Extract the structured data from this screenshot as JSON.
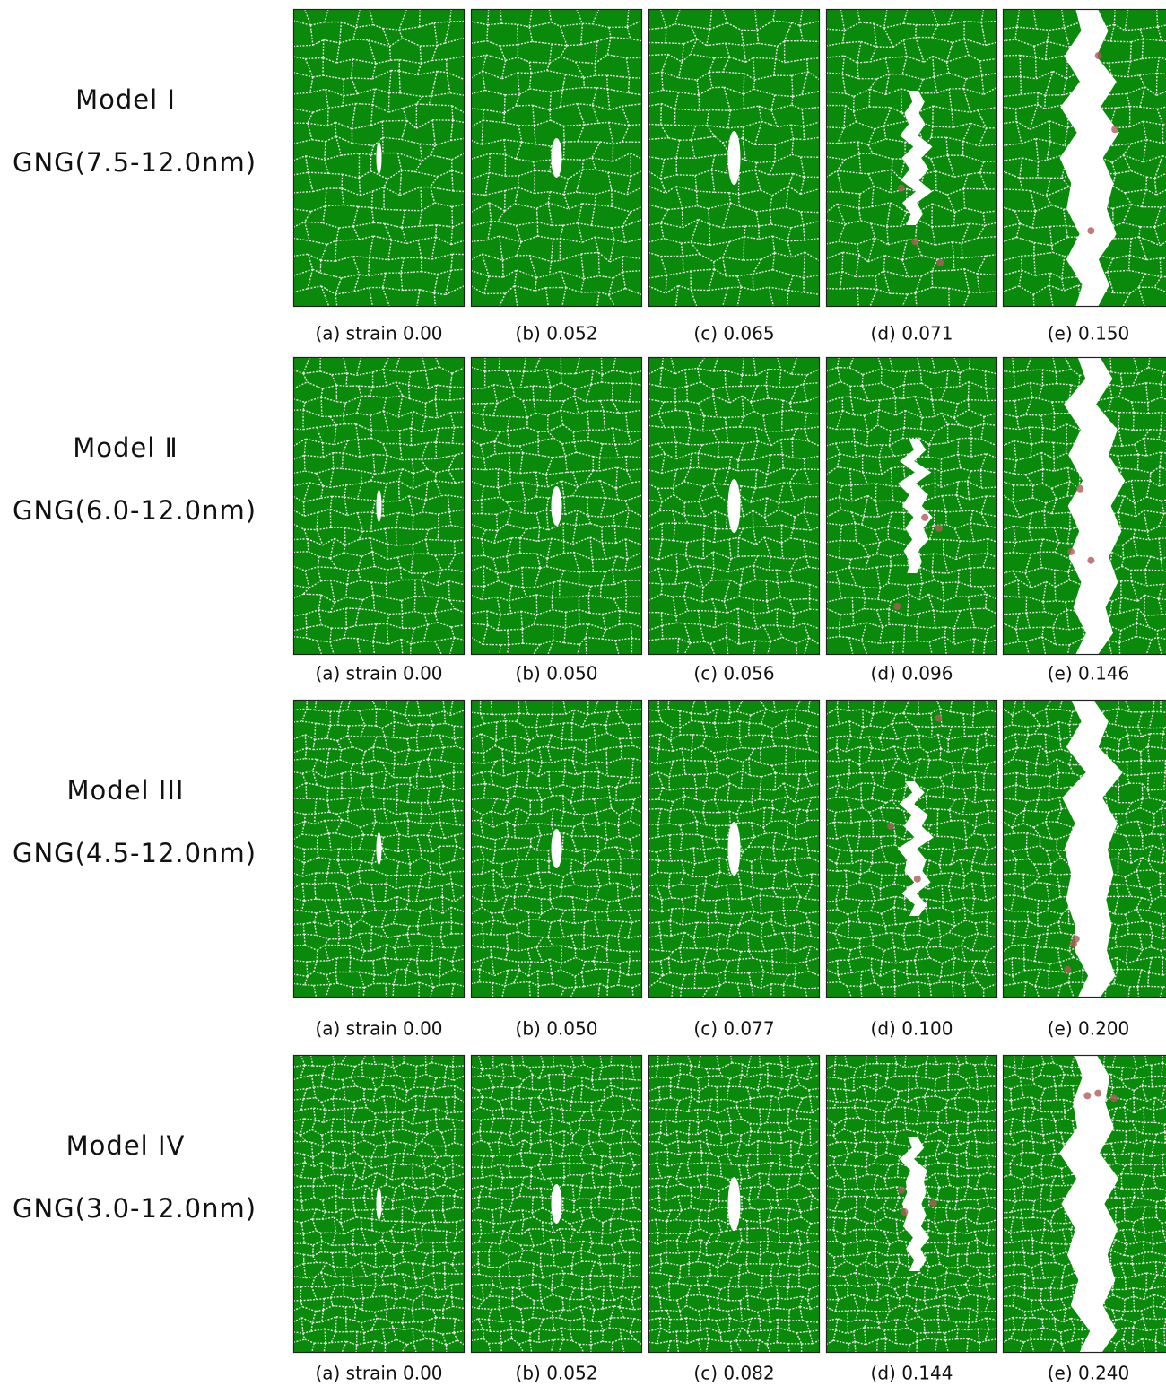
{
  "figure": {
    "rows": [
      {
        "model": "Model Ⅰ",
        "gng": "GNG(7.5-12.0nm)",
        "captions": [
          "(a)  strain 0.00",
          "(b) 0.052",
          "(c) 0.065",
          "(d) 0.071",
          "(e) 0.150"
        ]
      },
      {
        "model": "Model Ⅱ",
        "gng": "GNG(6.0-12.0nm)",
        "captions": [
          "(a)  strain 0.00",
          "(b) 0.050",
          "(c) 0.056",
          "(d) 0.096",
          "(e) 0.146"
        ]
      },
      {
        "model": "Model III",
        "gng": "GNG(4.5-12.0nm)",
        "captions": [
          "(a)  strain 0.00",
          "(b)  0.050",
          "(c) 0.077",
          "(d) 0.100",
          "(e)  0.200"
        ]
      },
      {
        "model": "Model IV",
        "gng": "GNG(3.0-12.0nm)",
        "captions": [
          "(a)  strain 0.00",
          "(b) 0.052",
          "(c) 0.082",
          "(d) 0.144",
          "(e) 0.240"
        ]
      }
    ]
  }
}
